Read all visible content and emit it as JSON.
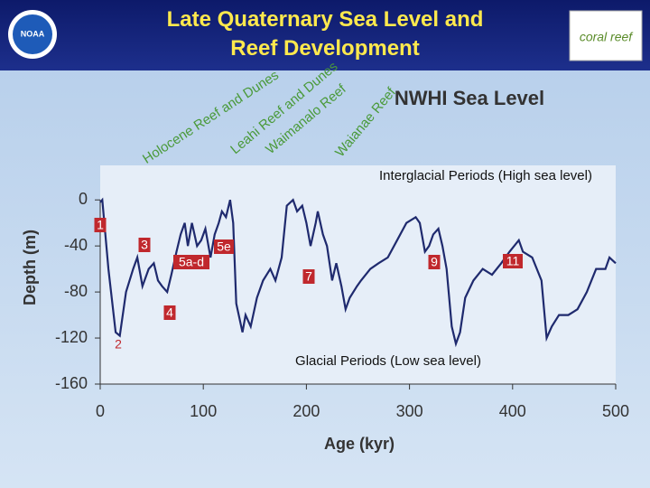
{
  "header": {
    "title": "Late Quaternary Sea Level and Reef Development",
    "logo_left": "NOAA",
    "logo_right": "coral reef"
  },
  "chart_data": {
    "type": "line",
    "title": "NWHI Sea Level",
    "xlabel": "Age (kyr)",
    "ylabel": "Depth (m)",
    "xlim": [
      0,
      500
    ],
    "xticks": [
      0,
      100,
      200,
      300,
      400,
      500
    ],
    "ylim": [
      -160,
      30
    ],
    "yticks": [
      0,
      -40,
      -80,
      -120,
      -160
    ],
    "color": "#1f2a6e",
    "x": [
      0,
      2,
      8,
      15,
      19,
      25,
      32,
      36,
      41,
      47,
      52,
      56,
      60,
      65,
      69,
      74,
      78,
      82,
      85,
      89,
      94,
      98,
      102,
      107,
      111,
      115,
      118,
      122,
      126,
      129,
      132,
      138,
      141,
      146,
      152,
      158,
      165,
      170,
      176,
      181,
      187,
      191,
      196,
      200,
      204,
      209,
      211,
      216,
      220,
      225,
      229,
      234,
      238,
      242,
      249,
      253,
      262,
      270,
      279,
      288,
      297,
      306,
      310,
      315,
      319,
      323,
      328,
      332,
      336,
      341,
      345,
      349,
      354,
      362,
      371,
      380,
      389,
      397,
      406,
      410,
      419,
      428,
      433,
      438,
      445,
      454,
      463,
      472,
      481,
      490,
      494,
      500
    ],
    "values": [
      -2,
      0,
      -60,
      -115,
      -118,
      -80,
      -60,
      -50,
      -75,
      -60,
      -55,
      -70,
      -75,
      -80,
      -65,
      -45,
      -30,
      -20,
      -40,
      -20,
      -40,
      -35,
      -25,
      -50,
      -30,
      -20,
      -10,
      -15,
      0,
      -20,
      -90,
      -115,
      -100,
      -110,
      -85,
      -70,
      -60,
      -70,
      -50,
      -5,
      0,
      -10,
      -5,
      -20,
      -40,
      -20,
      -10,
      -30,
      -40,
      -70,
      -55,
      -75,
      -95,
      -85,
      -75,
      -70,
      -60,
      -55,
      -50,
      -35,
      -20,
      -15,
      -20,
      -45,
      -40,
      -30,
      -25,
      -40,
      -60,
      -110,
      -125,
      -115,
      -85,
      -70,
      -60,
      -65,
      -55,
      -45,
      -35,
      -45,
      -50,
      -70,
      -120,
      -110,
      -100,
      -100,
      -95,
      -80,
      -60,
      -60,
      -50,
      -55
    ],
    "annotations": [
      "Interglacial Periods (High sea level)",
      "Glacial Periods (Low sea level)"
    ],
    "reef_labels": [
      "Holocene Reef and Dunes",
      "Leahi Reef and Dunes",
      "Waimanalo Reef",
      "Waianae Reef"
    ],
    "stage_labels": [
      "1",
      "2",
      "3",
      "4",
      "5a-d",
      "5e",
      "7",
      "9",
      "11"
    ]
  }
}
